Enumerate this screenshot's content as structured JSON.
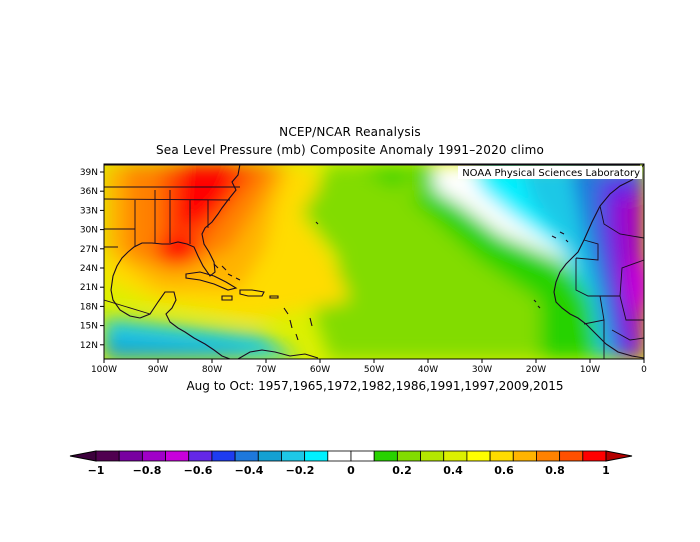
{
  "title": "NCEP/NCAR Reanalysis",
  "subtitle": "Sea Level Pressure (mb) Composite Anomaly 1991–2020 climo",
  "credit": "NOAA Physical Sciences Laboratory",
  "period_label": "Aug to Oct: 1957,1965,1972,1982,1986,1991,1997,2009,2015",
  "map": {
    "lat_labels": [
      "39N",
      "36N",
      "33N",
      "30N",
      "27N",
      "24N",
      "21N",
      "18N",
      "15N",
      "12N"
    ],
    "lon_labels": [
      "100W",
      "90W",
      "80W",
      "70W",
      "60W",
      "50W",
      "40W",
      "30W",
      "20W",
      "10W",
      "0"
    ],
    "lat_range": [
      10,
      40
    ],
    "lon_range": [
      -100,
      0
    ]
  },
  "colorbar": {
    "labels": [
      "-1",
      "-0.8",
      "-0.6",
      "-0.4",
      "-0.2",
      "0",
      "0.2",
      "0.4",
      "0.6",
      "0.8",
      "1"
    ],
    "colors": [
      "#500050",
      "#7800a0",
      "#a000c8",
      "#c800dc",
      "#6428e6",
      "#1e3cf0",
      "#1e78dc",
      "#14a0d2",
      "#1ec8e6",
      "#00f0ff",
      "#ffffff",
      "#ffffff",
      "#28d200",
      "#82dc00",
      "#b4e600",
      "#dcf000",
      "#ffff00",
      "#ffdc00",
      "#ffb400",
      "#ff8200",
      "#ff5000",
      "#ff0000"
    ],
    "low_color": "#3c003c",
    "high_color": "#b40000"
  }
}
